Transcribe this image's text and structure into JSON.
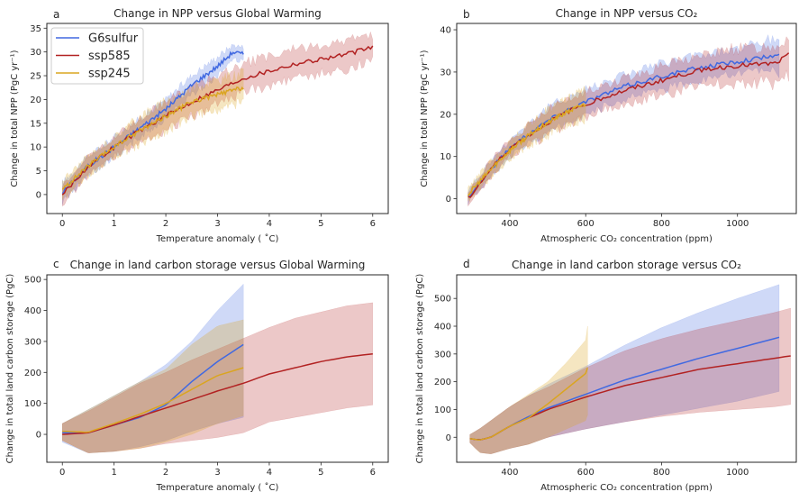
{
  "figure": {
    "series_colors": {
      "G6sulfur": "#4169e1",
      "ssp585": "#b22222",
      "ssp245": "#daa520"
    },
    "legend": {
      "entries": [
        "G6sulfur",
        "ssp585",
        "ssp245"
      ],
      "placement": "upper-left of panel a"
    }
  },
  "chart_data": [
    {
      "panel": "a",
      "type": "line",
      "title": "Change in NPP versus Global Warming",
      "xlabel": "Temperature anomaly ( ˚C)",
      "ylabel": "Change in total NPP (PgC yr⁻¹)",
      "xlim": [
        -0.3,
        6.3
      ],
      "ylim": [
        -4,
        36
      ],
      "xticks": [
        0,
        1,
        2,
        3,
        4,
        5,
        6
      ],
      "yticks": [
        0,
        5,
        10,
        15,
        20,
        25,
        30,
        35
      ],
      "series": [
        {
          "name": "G6sulfur",
          "x": [
            0,
            0.5,
            1.0,
            1.5,
            2.0,
            2.5,
            3.0,
            3.3,
            3.5
          ],
          "y": [
            0.5,
            6,
            10,
            14,
            18,
            23,
            27,
            30,
            29.5
          ],
          "band_halfwidth": [
            2,
            2,
            2,
            2,
            2,
            2,
            2,
            1.5,
            1.5
          ]
        },
        {
          "name": "ssp585",
          "x": [
            0,
            0.5,
            1.0,
            1.5,
            2.0,
            2.5,
            3.0,
            3.5,
            4.0,
            4.5,
            5.0,
            5.5,
            6.0
          ],
          "y": [
            0,
            6,
            10,
            13.5,
            16.5,
            19.5,
            22,
            24.5,
            26,
            27.5,
            28.5,
            29.5,
            31
          ],
          "band_halfwidth": [
            2,
            2,
            2,
            2.5,
            3,
            3,
            3,
            3,
            3,
            3,
            3,
            3,
            2.5
          ]
        },
        {
          "name": "ssp245",
          "x": [
            0,
            0.5,
            1.0,
            1.5,
            2.0,
            2.5,
            3.0,
            3.5
          ],
          "y": [
            1,
            6,
            10,
            13.5,
            16.5,
            19.5,
            21,
            22.5
          ],
          "band_halfwidth": [
            2,
            2,
            2,
            3,
            3,
            3,
            3,
            3
          ]
        }
      ]
    },
    {
      "panel": "b",
      "type": "line",
      "title": "Change in NPP versus CO₂",
      "xlabel": "Atmospheric CO₂ concentration (ppm)",
      "ylabel": "Change in total NPP (PgC yr⁻¹)",
      "xlim": [
        260,
        1155
      ],
      "ylim": [
        -3.5,
        41.5
      ],
      "xticks": [
        400,
        600,
        800,
        1000
      ],
      "yticks": [
        0,
        10,
        20,
        30,
        40
      ],
      "series": [
        {
          "name": "G6sulfur",
          "x": [
            290,
            350,
            400,
            450,
            500,
            550,
            600,
            700,
            800,
            900,
            1000,
            1110
          ],
          "y": [
            0.5,
            7,
            12,
            15.5,
            18.5,
            21,
            23,
            26.5,
            29,
            31,
            32.5,
            34
          ],
          "band_halfwidth": [
            1.5,
            2,
            2,
            2.5,
            3,
            3,
            3,
            3,
            3,
            3,
            3,
            4
          ]
        },
        {
          "name": "ssp585",
          "x": [
            290,
            350,
            400,
            450,
            500,
            550,
            600,
            700,
            800,
            900,
            1000,
            1100,
            1135
          ],
          "y": [
            0,
            7,
            12,
            15,
            18,
            20.5,
            22.5,
            25.5,
            28,
            30.5,
            31.5,
            32,
            34
          ],
          "band_halfwidth": [
            1.5,
            2,
            2,
            2.5,
            3,
            3,
            3,
            3,
            3.5,
            3.5,
            4,
            4.5,
            4.5
          ]
        },
        {
          "name": "ssp245",
          "x": [
            290,
            350,
            400,
            450,
            500,
            550,
            600
          ],
          "y": [
            1,
            7,
            11.5,
            15,
            18,
            20.5,
            22.5
          ],
          "band_halfwidth": [
            1.5,
            2,
            2,
            2.5,
            3,
            3,
            3.5
          ]
        }
      ]
    },
    {
      "panel": "c",
      "type": "line",
      "title": "Change in land carbon storage versus Global Warming",
      "xlabel": "Temperature anomaly ( ˚C)",
      "ylabel": "Change in total land carbon storage (PgC)",
      "xlim": [
        -0.3,
        6.3
      ],
      "ylim": [
        -90,
        515
      ],
      "xticks": [
        0,
        1,
        2,
        3,
        4,
        5,
        6
      ],
      "yticks": [
        0,
        100,
        200,
        300,
        400,
        500
      ],
      "series": [
        {
          "name": "G6sulfur",
          "x": [
            0,
            0.5,
            1.0,
            1.5,
            2.0,
            2.5,
            3.0,
            3.5
          ],
          "y": [
            5,
            5,
            30,
            55,
            95,
            170,
            235,
            290
          ],
          "upper": [
            35,
            80,
            125,
            170,
            225,
            300,
            400,
            485
          ],
          "lower": [
            -25,
            -60,
            -55,
            -40,
            -20,
            10,
            35,
            55
          ]
        },
        {
          "name": "ssp585",
          "x": [
            0,
            0.5,
            1.0,
            1.5,
            2.0,
            2.5,
            3.0,
            3.5,
            4.0,
            4.5,
            5.0,
            5.5,
            6.0
          ],
          "y": [
            0,
            5,
            30,
            58,
            85,
            112,
            140,
            165,
            195,
            215,
            235,
            250,
            260
          ],
          "upper": [
            35,
            75,
            120,
            165,
            200,
            240,
            275,
            310,
            345,
            375,
            395,
            415,
            425
          ],
          "lower": [
            -20,
            -60,
            -55,
            -45,
            -30,
            -20,
            -10,
            5,
            40,
            55,
            70,
            85,
            95
          ]
        },
        {
          "name": "ssp245",
          "x": [
            0,
            0.5,
            1.0,
            1.5,
            2.0,
            2.5,
            3.0,
            3.5
          ],
          "y": [
            10,
            7,
            35,
            65,
            100,
            145,
            190,
            215
          ],
          "upper": [
            35,
            80,
            125,
            170,
            210,
            290,
            350,
            370
          ],
          "lower": [
            -20,
            -60,
            -55,
            -45,
            -25,
            0,
            35,
            60
          ]
        }
      ]
    },
    {
      "panel": "d",
      "type": "line",
      "title": "Change in land carbon storage versus CO₂",
      "xlabel": "Atmospheric CO₂ concentration (ppm)",
      "ylabel": "Change in total land carbon storage (PgC)",
      "xlim": [
        260,
        1155
      ],
      "ylim": [
        -90,
        585
      ],
      "xticks": [
        400,
        600,
        800,
        1000
      ],
      "yticks": [
        0,
        100,
        200,
        300,
        400,
        500
      ],
      "series": [
        {
          "name": "G6sulfur",
          "x": [
            295,
            320,
            350,
            400,
            450,
            500,
            600,
            700,
            800,
            900,
            1000,
            1110
          ],
          "y": [
            -5,
            -10,
            0,
            40,
            75,
            105,
            155,
            205,
            245,
            285,
            320,
            360
          ],
          "upper": [
            10,
            30,
            60,
            110,
            150,
            190,
            255,
            330,
            395,
            450,
            500,
            550
          ],
          "lower": [
            -20,
            -55,
            -60,
            -40,
            -25,
            0,
            30,
            55,
            80,
            105,
            130,
            165
          ]
        },
        {
          "name": "ssp585",
          "x": [
            295,
            320,
            350,
            400,
            450,
            500,
            600,
            700,
            800,
            900,
            1000,
            1100,
            1140
          ],
          "y": [
            -5,
            -10,
            0,
            40,
            70,
            100,
            145,
            185,
            215,
            245,
            265,
            285,
            293
          ],
          "upper": [
            10,
            30,
            60,
            110,
            150,
            180,
            250,
            310,
            355,
            390,
            420,
            450,
            465
          ],
          "lower": [
            -20,
            -55,
            -60,
            -40,
            -25,
            0,
            30,
            55,
            75,
            90,
            100,
            110,
            118
          ]
        },
        {
          "name": "ssp245",
          "x": [
            295,
            320,
            350,
            400,
            450,
            500,
            550,
            600,
            605
          ],
          "y": [
            -5,
            -10,
            0,
            40,
            70,
            120,
            175,
            230,
            250
          ],
          "upper": [
            10,
            30,
            60,
            110,
            155,
            200,
            270,
            350,
            400
          ],
          "lower": [
            -20,
            -55,
            -60,
            -40,
            -25,
            0,
            30,
            60,
            80
          ]
        }
      ]
    }
  ]
}
